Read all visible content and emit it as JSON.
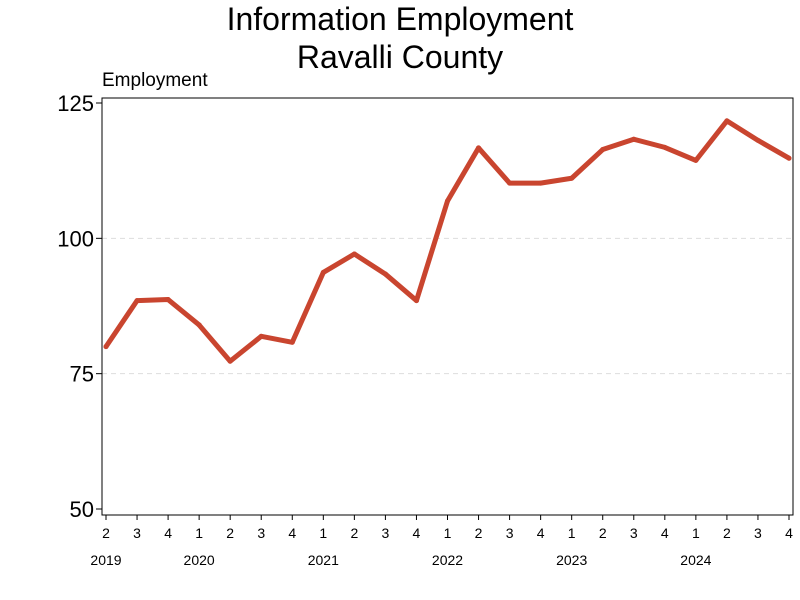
{
  "chart_data": {
    "type": "line",
    "title": "Information Employment",
    "subtitle": "Ravalli County",
    "ylabel": "Employment",
    "ylim": [
      50,
      125
    ],
    "yticks": [
      50,
      75,
      100,
      125
    ],
    "grid": true,
    "legend": "none",
    "colors": {
      "line": "#c9452f",
      "grid": "#dddddd",
      "axis": "#000000"
    },
    "quarter_labels": [
      "2",
      "3",
      "4",
      "1",
      "2",
      "3",
      "4",
      "1",
      "2",
      "3",
      "4",
      "1",
      "2",
      "3",
      "4",
      "1",
      "2",
      "3",
      "4",
      "1",
      "2",
      "3",
      "4"
    ],
    "year_labels": [
      {
        "label": "2019",
        "at_index": 0
      },
      {
        "label": "2020",
        "at_index": 3
      },
      {
        "label": "2021",
        "at_index": 7
      },
      {
        "label": "2022",
        "at_index": 11
      },
      {
        "label": "2023",
        "at_index": 15
      },
      {
        "label": "2024",
        "at_index": 19
      }
    ],
    "series": [
      {
        "x": [
          "2019 Q2",
          "2019 Q3",
          "2019 Q4",
          "2020 Q1",
          "2020 Q2",
          "2020 Q3",
          "2020 Q4",
          "2021 Q1",
          "2021 Q2",
          "2021 Q3",
          "2021 Q4",
          "2022 Q1",
          "2022 Q2",
          "2022 Q3",
          "2022 Q4",
          "2023 Q1",
          "2023 Q2",
          "2023 Q3",
          "2023 Q4",
          "2024 Q1",
          "2024 Q2",
          "2024 Q3",
          "2024 Q4"
        ],
        "values": [
          80,
          88.5,
          88.7,
          84,
          77.3,
          81.9,
          80.8,
          93.7,
          97.1,
          93.4,
          88.5,
          106.9,
          116.7,
          110.2,
          110.2,
          111.1,
          116.4,
          118.3,
          116.8,
          114.4,
          121.7,
          118.1,
          114.8
        ]
      }
    ]
  }
}
